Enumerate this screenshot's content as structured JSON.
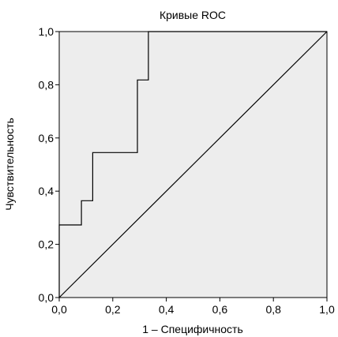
{
  "chart_data": {
    "type": "line",
    "title": "Кривые ROC",
    "xlabel": "1 – Специфичность",
    "ylabel": "Чувствительность",
    "xlim": [
      0,
      1
    ],
    "ylim": [
      0,
      1
    ],
    "x_ticks": [
      "0,0",
      "0,2",
      "0,4",
      "0,6",
      "0,8",
      "1,0"
    ],
    "y_ticks": [
      "0,0",
      "0,2",
      "0,4",
      "0,6",
      "0,8",
      "1,0"
    ],
    "grid": false,
    "colors": {
      "plot_background": "#ededed",
      "line": "#000000"
    },
    "series": [
      {
        "points": [
          [
            0,
            0
          ],
          [
            0,
            0.273
          ],
          [
            0.083,
            0.273
          ],
          [
            0.083,
            0.364
          ],
          [
            0.125,
            0.364
          ],
          [
            0.125,
            0.545
          ],
          [
            0.292,
            0.545
          ],
          [
            0.292,
            0.818
          ],
          [
            0.333,
            0.818
          ],
          [
            0.333,
            1.0
          ],
          [
            1.0,
            1.0
          ]
        ]
      },
      {
        "points": [
          [
            0,
            0
          ],
          [
            1,
            1
          ]
        ]
      }
    ]
  }
}
